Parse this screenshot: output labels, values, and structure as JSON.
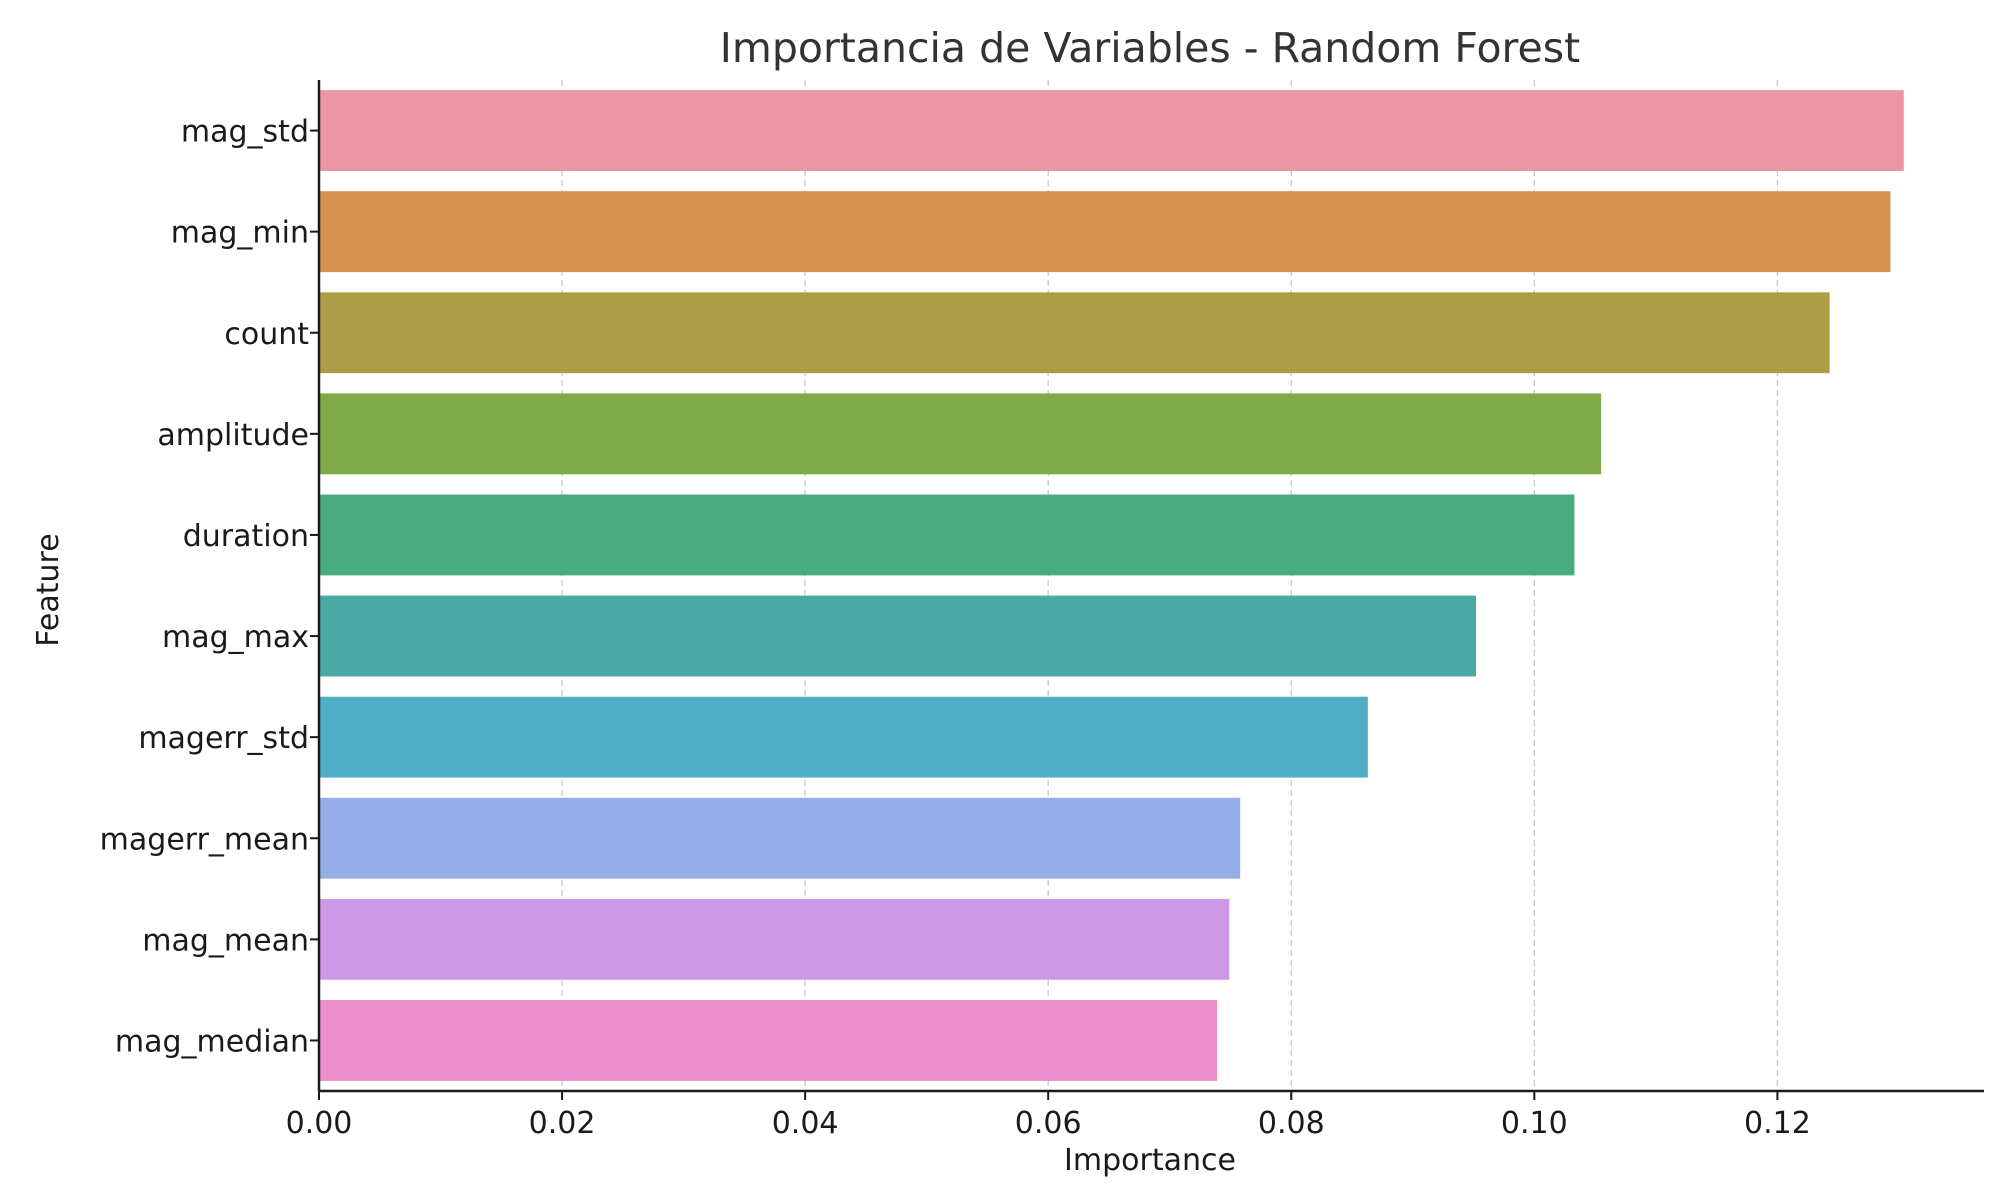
{
  "chart_data": {
    "type": "bar",
    "orientation": "horizontal",
    "title": "Importancia de Variables - Random Forest",
    "xlabel": "Importance",
    "ylabel": "Feature",
    "xlim": [
      0,
      0.137
    ],
    "xticks": [
      0.0,
      0.02,
      0.04,
      0.06,
      0.08,
      0.1,
      0.12
    ],
    "xtick_labels": [
      "0.00",
      "0.02",
      "0.04",
      "0.06",
      "0.08",
      "0.10",
      "0.12"
    ],
    "grid": "x-dashed",
    "categories": [
      "mag_std",
      "mag_min",
      "count",
      "amplitude",
      "duration",
      "mag_max",
      "magerr_std",
      "magerr_mean",
      "mag_mean",
      "mag_median"
    ],
    "values": [
      0.1304,
      0.1293,
      0.1243,
      0.1055,
      0.1033,
      0.0952,
      0.0863,
      0.0758,
      0.0749,
      0.0739
    ],
    "colors": [
      "#ea96a3",
      "#d5924d",
      "#ab9e47",
      "#80a947",
      "#49ac7f",
      "#4aaaa3",
      "#50adc6",
      "#95aee7",
      "#cd98e6",
      "#ea8fcb"
    ]
  }
}
